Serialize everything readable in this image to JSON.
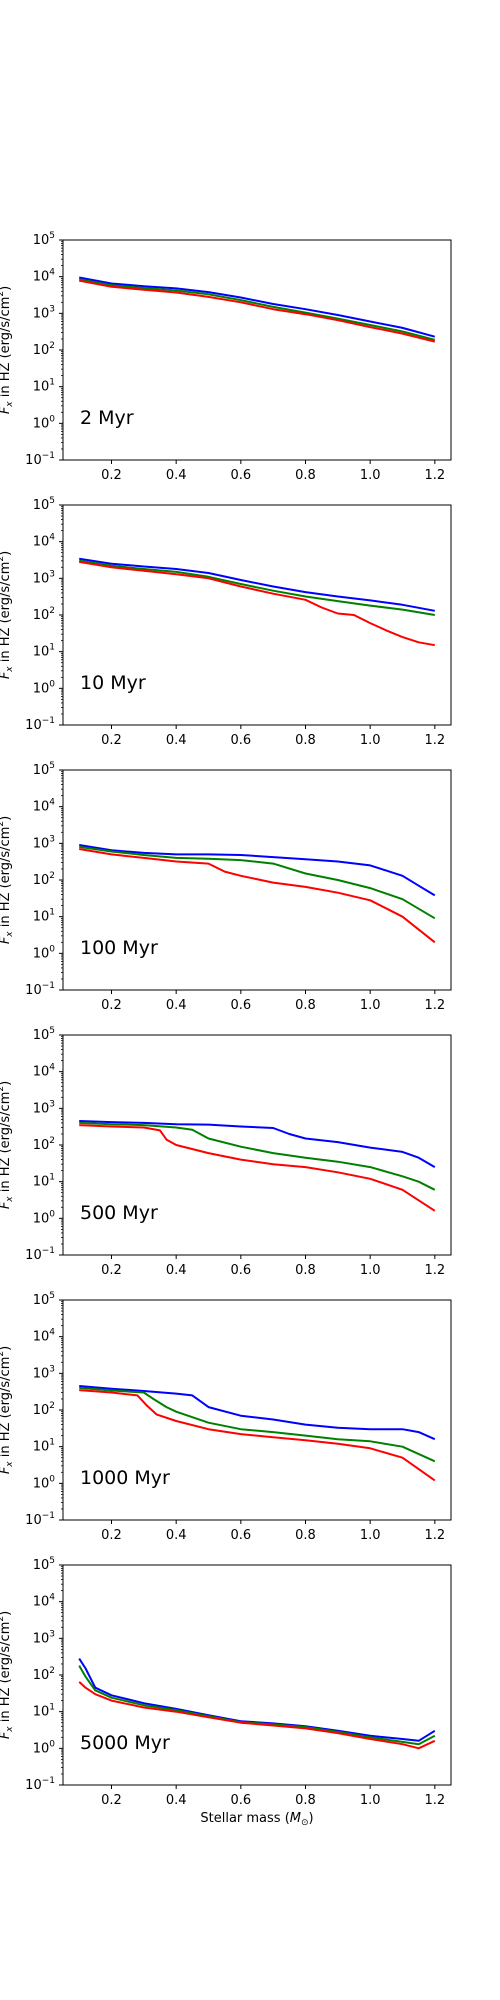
{
  "chart_data": [
    {
      "type": "line",
      "panel_label": "2 Myr",
      "ylabel": "F_x in HZ (erg/s/cm^2)",
      "xlabel": "",
      "xlim": [
        0.05,
        1.25
      ],
      "ylim": [
        0.1,
        100000
      ],
      "yscale": "log",
      "xticks": [
        "0.2",
        "0.4",
        "0.6",
        "0.8",
        "1.0",
        "1.2"
      ],
      "series": [
        {
          "color": "#0000ff",
          "x": [
            0.1,
            0.2,
            0.3,
            0.4,
            0.5,
            0.6,
            0.7,
            0.8,
            0.9,
            1.0,
            1.1,
            1.2
          ],
          "y": [
            9500,
            6500,
            5500,
            4800,
            3800,
            2700,
            1800,
            1300,
            900,
            600,
            400,
            230
          ]
        },
        {
          "color": "#008000",
          "x": [
            0.1,
            0.2,
            0.3,
            0.4,
            0.5,
            0.6,
            0.7,
            0.8,
            0.9,
            1.0,
            1.1,
            1.2
          ],
          "y": [
            8500,
            5800,
            4900,
            4200,
            3300,
            2300,
            1500,
            1050,
            720,
            480,
            320,
            190
          ]
        },
        {
          "color": "#ff0000",
          "x": [
            0.1,
            0.2,
            0.3,
            0.4,
            0.5,
            0.6,
            0.7,
            0.8,
            0.9,
            1.0,
            1.1,
            1.2
          ],
          "y": [
            7800,
            5300,
            4400,
            3700,
            2800,
            2000,
            1300,
            950,
            650,
            420,
            280,
            170
          ]
        }
      ]
    },
    {
      "type": "line",
      "panel_label": "10 Myr",
      "ylabel": "F_x in HZ (erg/s/cm^2)",
      "xlabel": "",
      "xlim": [
        0.05,
        1.25
      ],
      "ylim": [
        0.1,
        100000
      ],
      "yscale": "log",
      "xticks": [
        "0.2",
        "0.4",
        "0.6",
        "0.8",
        "1.0",
        "1.2"
      ],
      "series": [
        {
          "color": "#0000ff",
          "x": [
            0.1,
            0.2,
            0.3,
            0.4,
            0.5,
            0.6,
            0.7,
            0.8,
            0.9,
            1.0,
            1.1,
            1.2
          ],
          "y": [
            3400,
            2500,
            2100,
            1800,
            1400,
            900,
            600,
            420,
            320,
            250,
            190,
            130
          ]
        },
        {
          "color": "#008000",
          "x": [
            0.1,
            0.2,
            0.3,
            0.4,
            0.5,
            0.6,
            0.7,
            0.8,
            0.9,
            1.0,
            1.1,
            1.2
          ],
          "y": [
            3000,
            2200,
            1800,
            1500,
            1100,
            700,
            460,
            320,
            240,
            180,
            140,
            100
          ]
        },
        {
          "color": "#ff0000",
          "x": [
            0.1,
            0.2,
            0.3,
            0.4,
            0.5,
            0.6,
            0.7,
            0.8,
            0.85,
            0.9,
            0.95,
            1.0,
            1.05,
            1.1,
            1.15,
            1.2
          ],
          "y": [
            2800,
            2000,
            1600,
            1300,
            1000,
            600,
            380,
            260,
            160,
            110,
            100,
            60,
            38,
            25,
            18,
            15
          ]
        }
      ]
    },
    {
      "type": "line",
      "panel_label": "100 Myr",
      "ylabel": "F_x in HZ (erg/s/cm^2)",
      "xlabel": "",
      "xlim": [
        0.05,
        1.25
      ],
      "ylim": [
        0.1,
        100000
      ],
      "yscale": "log",
      "xticks": [
        "0.2",
        "0.4",
        "0.6",
        "0.8",
        "1.0",
        "1.2"
      ],
      "series": [
        {
          "color": "#0000ff",
          "x": [
            0.1,
            0.2,
            0.3,
            0.4,
            0.5,
            0.6,
            0.7,
            0.8,
            0.9,
            1.0,
            1.05,
            1.1,
            1.15,
            1.2
          ],
          "y": [
            900,
            650,
            550,
            500,
            500,
            480,
            420,
            370,
            320,
            250,
            180,
            130,
            70,
            38
          ]
        },
        {
          "color": "#008000",
          "x": [
            0.1,
            0.2,
            0.3,
            0.4,
            0.5,
            0.6,
            0.7,
            0.8,
            0.9,
            1.0,
            1.1,
            1.2
          ],
          "y": [
            800,
            600,
            480,
            400,
            380,
            350,
            280,
            150,
            100,
            60,
            30,
            9
          ]
        },
        {
          "color": "#ff0000",
          "x": [
            0.1,
            0.2,
            0.3,
            0.4,
            0.5,
            0.55,
            0.6,
            0.7,
            0.8,
            0.9,
            1.0,
            1.1,
            1.2
          ],
          "y": [
            700,
            500,
            400,
            320,
            280,
            170,
            130,
            85,
            65,
            45,
            28,
            10,
            2
          ]
        }
      ]
    },
    {
      "type": "line",
      "panel_label": "500 Myr",
      "ylabel": "F_x in HZ (erg/s/cm^2)",
      "xlabel": "",
      "xlim": [
        0.05,
        1.25
      ],
      "ylim": [
        0.1,
        100000
      ],
      "yscale": "log",
      "xticks": [
        "0.2",
        "0.4",
        "0.6",
        "0.8",
        "1.0",
        "1.2"
      ],
      "series": [
        {
          "color": "#0000ff",
          "x": [
            0.1,
            0.2,
            0.3,
            0.4,
            0.5,
            0.6,
            0.7,
            0.75,
            0.8,
            0.9,
            1.0,
            1.1,
            1.15,
            1.2
          ],
          "y": [
            450,
            420,
            400,
            370,
            360,
            320,
            290,
            200,
            150,
            120,
            85,
            65,
            45,
            25
          ]
        },
        {
          "color": "#008000",
          "x": [
            0.1,
            0.2,
            0.3,
            0.4,
            0.45,
            0.5,
            0.6,
            0.7,
            0.8,
            0.9,
            1.0,
            1.1,
            1.15,
            1.2
          ],
          "y": [
            400,
            370,
            350,
            300,
            260,
            150,
            90,
            60,
            45,
            35,
            25,
            14,
            10,
            6
          ]
        },
        {
          "color": "#ff0000",
          "x": [
            0.1,
            0.2,
            0.3,
            0.35,
            0.37,
            0.4,
            0.5,
            0.6,
            0.7,
            0.8,
            0.9,
            1.0,
            1.1,
            1.2
          ],
          "y": [
            350,
            320,
            300,
            250,
            140,
            100,
            60,
            40,
            30,
            25,
            18,
            12,
            6,
            1.6
          ]
        }
      ]
    },
    {
      "type": "line",
      "panel_label": "1000 Myr",
      "ylabel": "F_x in HZ (erg/s/cm^2)",
      "xlabel": "",
      "xlim": [
        0.05,
        1.25
      ],
      "ylim": [
        0.1,
        100000
      ],
      "yscale": "log",
      "xticks": [
        "0.2",
        "0.4",
        "0.6",
        "0.8",
        "1.0",
        "1.2"
      ],
      "series": [
        {
          "color": "#0000ff",
          "x": [
            0.1,
            0.2,
            0.3,
            0.4,
            0.45,
            0.5,
            0.6,
            0.7,
            0.8,
            0.9,
            1.0,
            1.1,
            1.15,
            1.2
          ],
          "y": [
            450,
            380,
            330,
            280,
            250,
            120,
            70,
            55,
            40,
            33,
            30,
            30,
            25,
            16
          ]
        },
        {
          "color": "#008000",
          "x": [
            0.1,
            0.2,
            0.3,
            0.33,
            0.37,
            0.4,
            0.5,
            0.6,
            0.7,
            0.8,
            0.9,
            1.0,
            1.1,
            1.2
          ],
          "y": [
            400,
            340,
            300,
            200,
            120,
            90,
            45,
            30,
            25,
            20,
            16,
            14,
            10,
            4
          ]
        },
        {
          "color": "#ff0000",
          "x": [
            0.1,
            0.2,
            0.28,
            0.31,
            0.34,
            0.4,
            0.5,
            0.6,
            0.7,
            0.8,
            0.9,
            1.0,
            1.1,
            1.2
          ],
          "y": [
            350,
            300,
            250,
            130,
            75,
            50,
            30,
            22,
            18,
            15,
            12,
            9,
            5,
            1.2
          ]
        }
      ]
    },
    {
      "type": "line",
      "panel_label": "5000 Myr",
      "ylabel": "F_x in HZ (erg/s/cm^2)",
      "xlabel": "Stellar mass (M_⊙)",
      "xlim": [
        0.05,
        1.25
      ],
      "ylim": [
        0.1,
        100000
      ],
      "yscale": "log",
      "xticks": [
        "0.2",
        "0.4",
        "0.6",
        "0.8",
        "1.0",
        "1.2"
      ],
      "series": [
        {
          "color": "#0000ff",
          "x": [
            0.1,
            0.12,
            0.15,
            0.2,
            0.3,
            0.4,
            0.5,
            0.6,
            0.7,
            0.8,
            0.9,
            1.0,
            1.1,
            1.15,
            1.2
          ],
          "y": [
            280,
            150,
            45,
            28,
            17,
            12,
            8,
            5.5,
            4.8,
            4,
            3,
            2.2,
            1.8,
            1.6,
            3
          ]
        },
        {
          "color": "#008000",
          "x": [
            0.1,
            0.12,
            0.15,
            0.2,
            0.3,
            0.4,
            0.5,
            0.6,
            0.7,
            0.8,
            0.9,
            1.0,
            1.1,
            1.15,
            1.2
          ],
          "y": [
            180,
            90,
            38,
            24,
            15,
            11,
            7.5,
            5.2,
            4.5,
            3.8,
            2.8,
            2,
            1.5,
            1.3,
            2.2
          ]
        },
        {
          "color": "#ff0000",
          "x": [
            0.1,
            0.12,
            0.15,
            0.2,
            0.3,
            0.4,
            0.5,
            0.6,
            0.7,
            0.8,
            0.9,
            1.0,
            1.1,
            1.15,
            1.2
          ],
          "y": [
            65,
            45,
            30,
            20,
            13,
            10,
            7,
            5,
            4.2,
            3.5,
            2.6,
            1.8,
            1.3,
            1.0,
            1.6
          ]
        }
      ]
    }
  ]
}
